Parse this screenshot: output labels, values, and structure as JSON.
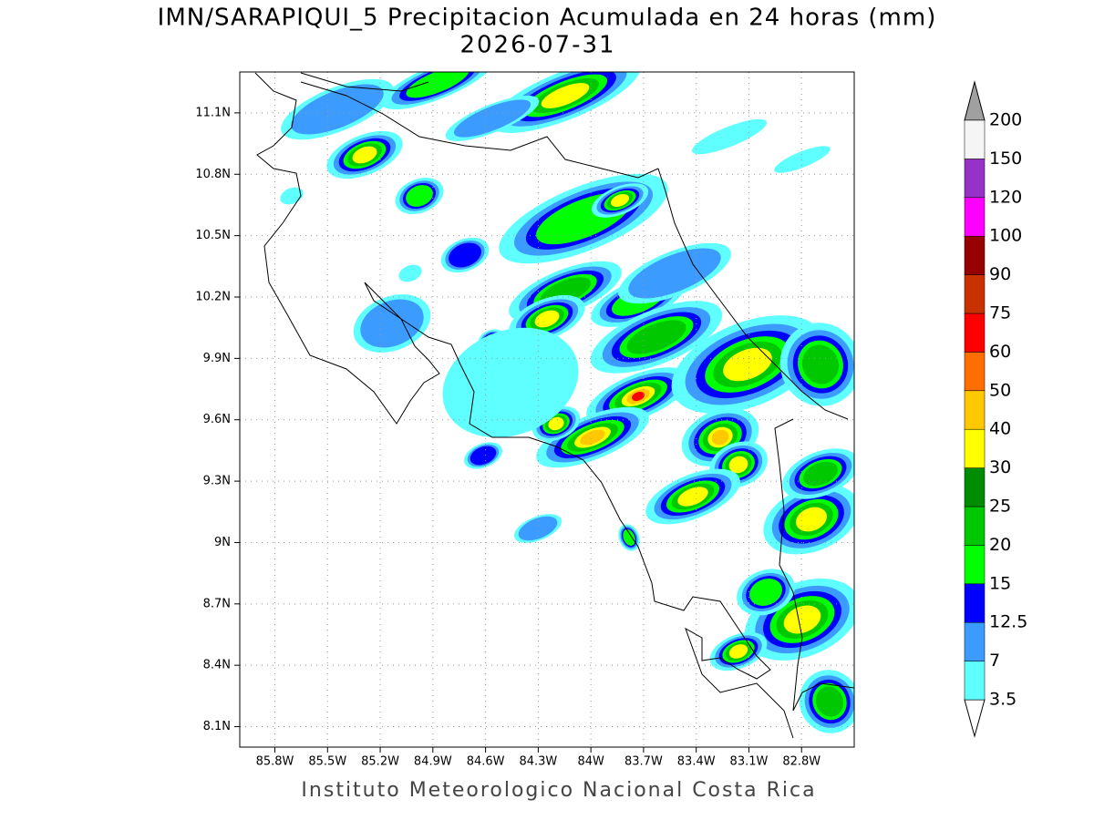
{
  "header": {
    "title": "IMN/SARAPIQUI_5 Precipitacion Acumulada en 24 horas (mm)",
    "date": "2026-07-31"
  },
  "map": {
    "xlim": [
      -86.0,
      -82.5
    ],
    "ylim": [
      8.0,
      11.3
    ],
    "grid": true,
    "xticks": [
      {
        "value": -85.8,
        "label": "85.8W"
      },
      {
        "value": -85.5,
        "label": "85.5W"
      },
      {
        "value": -85.2,
        "label": "85.2W"
      },
      {
        "value": -84.9,
        "label": "84.9W"
      },
      {
        "value": -84.6,
        "label": "84.6W"
      },
      {
        "value": -84.3,
        "label": "84.3W"
      },
      {
        "value": -84.0,
        "label": "84W"
      },
      {
        "value": -83.7,
        "label": "83.7W"
      },
      {
        "value": -83.4,
        "label": "83.4W"
      },
      {
        "value": -83.1,
        "label": "83.1W"
      },
      {
        "value": -82.8,
        "label": "82.8W"
      }
    ],
    "yticks": [
      {
        "value": 8.1,
        "label": "8.1N"
      },
      {
        "value": 8.4,
        "label": "8.4N"
      },
      {
        "value": 8.7,
        "label": "8.7N"
      },
      {
        "value": 9.0,
        "label": "9N"
      },
      {
        "value": 9.3,
        "label": "9.3N"
      },
      {
        "value": 9.6,
        "label": "9.6N"
      },
      {
        "value": 9.9,
        "label": "9.9N"
      },
      {
        "value": 10.2,
        "label": "10.2N"
      },
      {
        "value": 10.5,
        "label": "10.5N"
      },
      {
        "value": 10.8,
        "label": "10.8N"
      },
      {
        "value": 11.1,
        "label": "11.1N"
      }
    ]
  },
  "colorbar": {
    "levels": [
      3.5,
      7,
      12.5,
      15,
      20,
      25,
      30,
      40,
      50,
      60,
      75,
      90,
      100,
      120,
      150,
      200
    ],
    "colors": [
      "#60ffff",
      "#3c9bff",
      "#0000ff",
      "#00ff00",
      "#00c800",
      "#008c00",
      "#ffff00",
      "#ffc800",
      "#ff6e00",
      "#ff0000",
      "#c83200",
      "#960000",
      "#ff00ff",
      "#9632c8",
      "#f5f5f5"
    ],
    "under_color": "#ffffff",
    "over_color": "#a0a0a0"
  },
  "footer": "Instituto Meteorologico Nacional Costa Rica"
}
